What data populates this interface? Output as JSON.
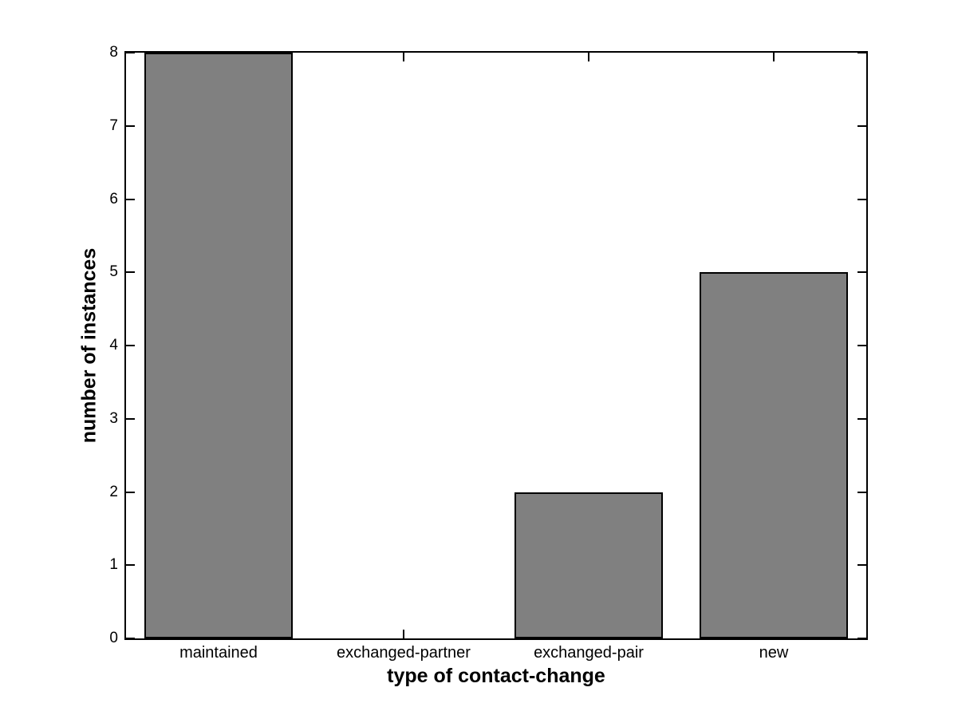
{
  "figure": {
    "background": "#ffffff",
    "text_color": "#000000"
  },
  "chart_data": {
    "type": "bar",
    "categories": [
      "maintained",
      "exchanged-partner",
      "exchanged-pair",
      "new"
    ],
    "values": [
      8,
      0,
      2,
      5
    ],
    "title": "",
    "xlabel": "type of contact-change",
    "ylabel": "number of instances",
    "ylim": [
      0,
      8
    ],
    "yticks": [
      0,
      1,
      2,
      3,
      4,
      5,
      6,
      7,
      8
    ],
    "ytick_labels": [
      "0",
      "1",
      "2",
      "3",
      "4",
      "5",
      "6",
      "7",
      "8"
    ],
    "bar_width_fraction": 0.8,
    "bar_fill_color": "#808080",
    "bar_edge_color": "#000000",
    "axis_color": "#000000",
    "tick_direction": "in",
    "box": true,
    "grid": false,
    "legend": null
  }
}
